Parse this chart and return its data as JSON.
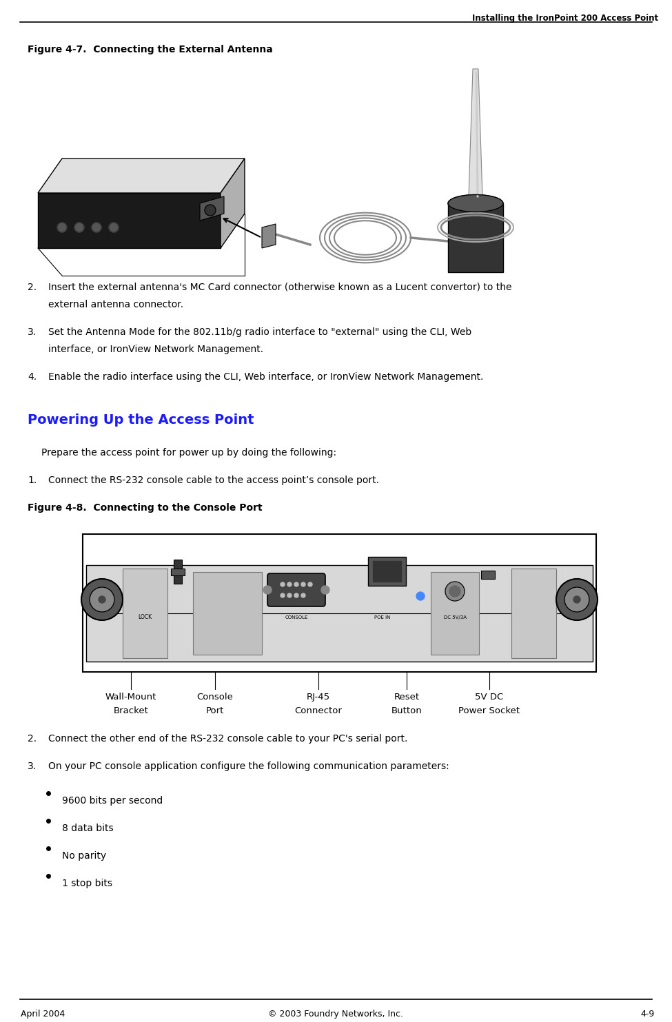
{
  "header_text": "Installing the IronPoint 200 Access Point",
  "footer_left": "April 2004",
  "footer_center": "© 2003 Foundry Networks, Inc.",
  "footer_right": "4-9",
  "fig1_caption": "Figure 4-7.  Connecting the External Antenna",
  "fig2_caption": "Figure 4-8.  Connecting to the Console Port",
  "section_title": "Powering Up the Access Point",
  "body_color": "#000000",
  "section_color": "#1a1aff",
  "bg_color": "#ffffff",
  "prepare_text": "Prepare the access point for power up by doing the following:",
  "item1_text": "1.   Connect the RS-232 console cable to the access point’s console port.",
  "bullets": [
    "9600 bits per second",
    "8 data bits",
    "No parity",
    "1 stop bits"
  ]
}
